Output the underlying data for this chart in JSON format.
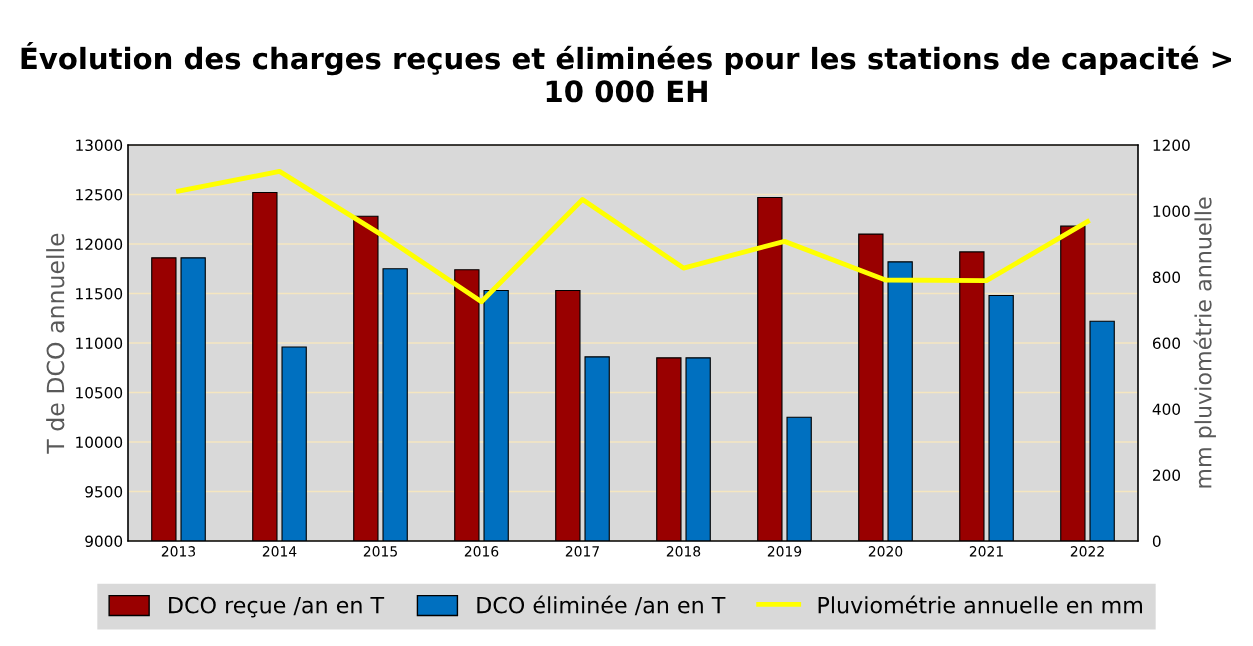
{
  "chart_data": {
    "type": "bar",
    "title": "Évolution des charges reçues et éliminées pour les stations de capacité > 10 000 EH",
    "ylabel": "T de DCO annuelle",
    "y2label": "mm pluviométrie annuelle",
    "categories": [
      "2013",
      "2014",
      "2015",
      "2016",
      "2017",
      "2018",
      "2019",
      "2020",
      "2021",
      "2022"
    ],
    "series": [
      {
        "name": "DCO reçue /an en T",
        "color": "#990000",
        "values": [
          11860,
          12520,
          12280,
          11740,
          11530,
          10850,
          12470,
          12100,
          11920,
          12180
        ]
      },
      {
        "name": "DCO éliminée /an en T",
        "color": "#0070c0",
        "values": [
          11860,
          10960,
          11750,
          11530,
          10860,
          10850,
          10250,
          11820,
          11480,
          11220
        ]
      },
      {
        "name": "Pluviométrie annuelle en mm",
        "type": "line",
        "axis": "y2",
        "color": "#ffff00",
        "values": [
          1060,
          1120,
          930,
          725,
          1035,
          827,
          908,
          791,
          789,
          968
        ]
      }
    ],
    "ylim": [
      9000,
      13000
    ],
    "yticks": [
      9000,
      9500,
      10000,
      10500,
      11000,
      11500,
      12000,
      12500,
      13000
    ],
    "y2lim": [
      0,
      1200
    ],
    "y2ticks": [
      0,
      200,
      400,
      600,
      800,
      1000,
      1200
    ],
    "grid": "y",
    "legend": "bottom"
  }
}
